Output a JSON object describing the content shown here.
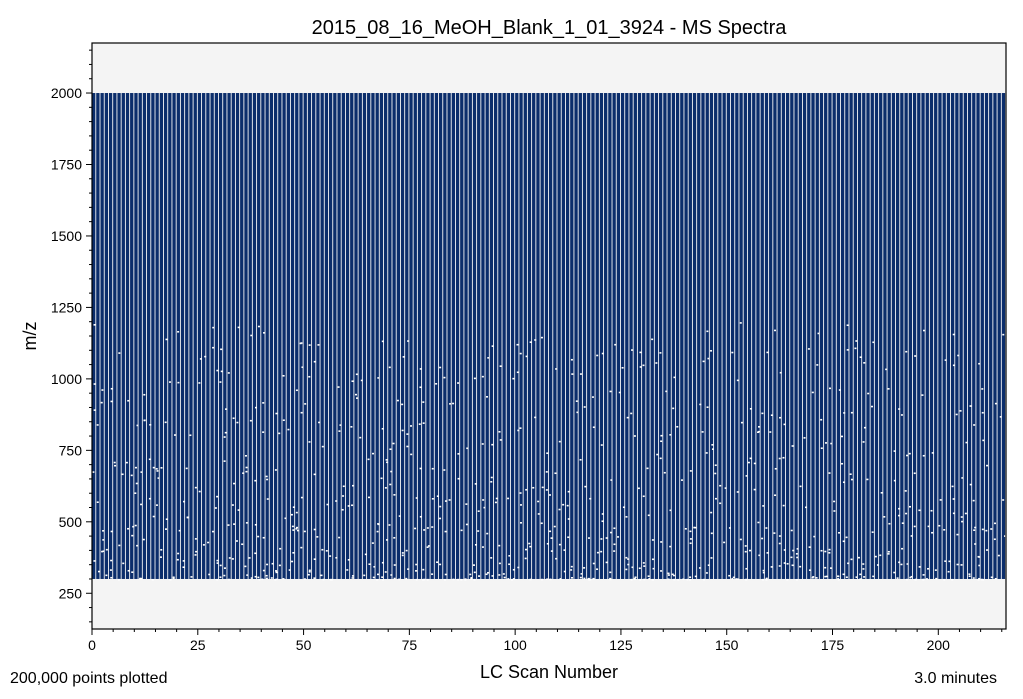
{
  "chart_data": {
    "type": "scatter",
    "title": "2015_08_16_MeOH_Blank_1_01_3924 - MS Spectra",
    "xlabel": "LC Scan Number",
    "ylabel": "m/z",
    "xlim": [
      0,
      216
    ],
    "ylim": [
      125,
      2175
    ],
    "x_ticks": [
      0,
      25,
      50,
      75,
      100,
      125,
      150,
      175,
      200
    ],
    "y_ticks": [
      250,
      500,
      750,
      1000,
      1250,
      1500,
      1750,
      2000
    ],
    "scan_range": [
      1,
      216
    ],
    "mz_range": [
      300,
      2000
    ],
    "dense_below_mz": 900,
    "grid": false,
    "legend": "none",
    "point_color": "#0b2d6b",
    "plot_background": "#f4f4f4"
  },
  "footer": {
    "points_plotted": "200,000 points plotted",
    "duration": "3.0 minutes"
  }
}
